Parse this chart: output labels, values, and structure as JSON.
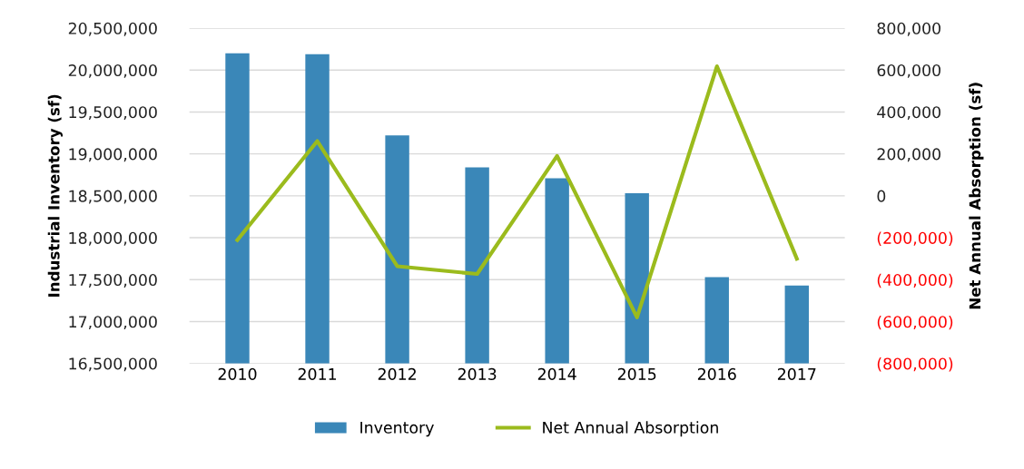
{
  "chart_data": {
    "type": "bar",
    "categories": [
      "2010",
      "2011",
      "2012",
      "2013",
      "2014",
      "2015",
      "2016",
      "2017"
    ],
    "series": [
      {
        "name": "Inventory",
        "color": "#3a87b8",
        "values": [
          20200000,
          20190000,
          19220000,
          18840000,
          18710000,
          18530000,
          17530000,
          17430000
        ]
      },
      {
        "name": "Net Annual Absorption",
        "type": "line",
        "axis": "y2",
        "color": "#9bbb1d",
        "values": [
          -211000,
          261000,
          -336000,
          -373000,
          190000,
          -580000,
          618000,
          -300000
        ]
      }
    ],
    "ylabel": "Industrial Inventory (sf)",
    "y2label": "Net Annual Absorption (sf)",
    "ylim": [
      16500000,
      20500000
    ],
    "yticks": [
      {
        "value": 16500000,
        "label": "16,500,000"
      },
      {
        "value": 17000000,
        "label": "17,000,000"
      },
      {
        "value": 17500000,
        "label": "17,500,000"
      },
      {
        "value": 18000000,
        "label": "18,000,000"
      },
      {
        "value": 18500000,
        "label": "18,500,000"
      },
      {
        "value": 19000000,
        "label": "19,000,000"
      },
      {
        "value": 19500000,
        "label": "19,500,000"
      },
      {
        "value": 20000000,
        "label": "20,000,000"
      },
      {
        "value": 20500000,
        "label": "20,500,000"
      }
    ],
    "y2lim": [
      -800000,
      800000
    ],
    "y2ticks": [
      {
        "value": -800000,
        "label": "(800,000)"
      },
      {
        "value": -600000,
        "label": "(600,000)"
      },
      {
        "value": -400000,
        "label": "(400,000)"
      },
      {
        "value": -200000,
        "label": "(200,000)"
      },
      0,
      {
        "value": 200000,
        "label": "200,000"
      },
      {
        "value": 400000,
        "label": "400,000"
      },
      {
        "value": 600000,
        "label": "600,000"
      },
      {
        "value": 800000,
        "label": "800,000"
      }
    ],
    "grid": "y",
    "legend": "bottom",
    "marker": "none",
    "line_style": "solid"
  }
}
